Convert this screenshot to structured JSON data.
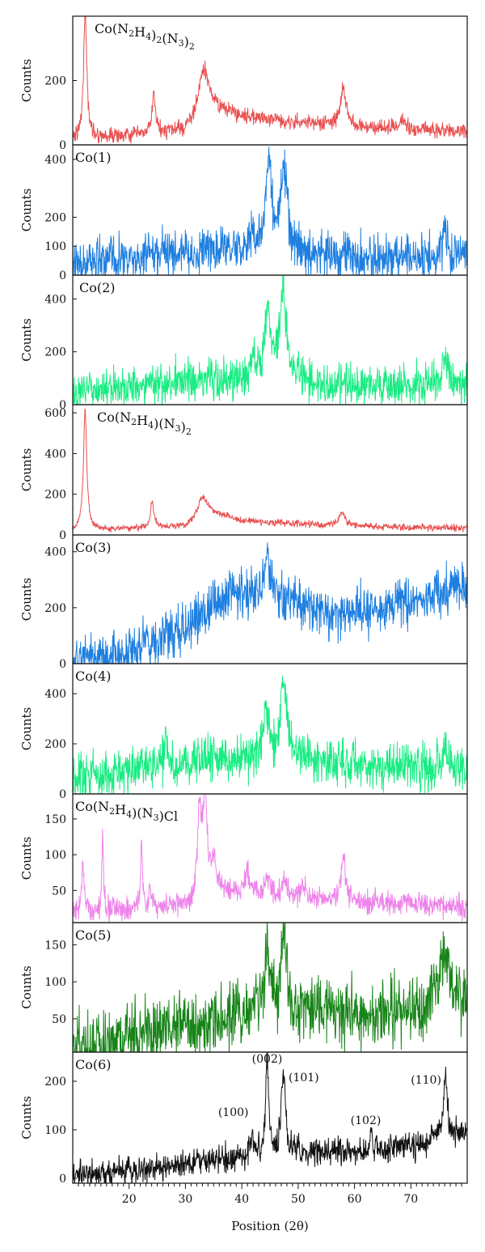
{
  "chart_data": {
    "type": "line",
    "xlabel": "Position (2θ)",
    "xlim": [
      10,
      80
    ],
    "x_ticks": [
      20,
      30,
      40,
      50,
      60,
      70
    ],
    "panels": [
      {
        "label_parts": [
          [
            "Co(N",
            "n"
          ],
          [
            "2",
            "sub"
          ],
          [
            "H",
            "n"
          ],
          [
            "4",
            "sub"
          ],
          [
            ")",
            "n"
          ],
          [
            "2",
            "sub"
          ],
          [
            "(N",
            "n"
          ],
          [
            "3",
            "sub"
          ],
          [
            ")",
            "n"
          ],
          [
            "2",
            "sub"
          ]
        ],
        "ylabel": "Counts",
        "color": "#e8504f",
        "ylim": [
          0,
          400
        ],
        "y_ticks": [
          0,
          200
        ],
        "baseline": [
          [
            10,
            20
          ],
          [
            12,
            22
          ],
          [
            20,
            28
          ],
          [
            30,
            45
          ],
          [
            34,
            120
          ],
          [
            40,
            90
          ],
          [
            50,
            70
          ],
          [
            60,
            55
          ],
          [
            70,
            48
          ],
          [
            80,
            42
          ]
        ],
        "peaks": [
          [
            12.2,
            380,
            0.35
          ],
          [
            24.4,
            120,
            0.35
          ],
          [
            33.2,
            130,
            1.0
          ],
          [
            58.0,
            120,
            0.6
          ],
          [
            68.5,
            20,
            0.8
          ]
        ],
        "noise": 12
      },
      {
        "label_parts": [
          [
            "Co(1)",
            "n"
          ]
        ],
        "ylabel": "Counts",
        "color": "#1e7fe0",
        "ylim": [
          0,
          450
        ],
        "y_ticks": [
          0,
          100,
          200,
          400
        ],
        "baseline": [
          [
            10,
            40
          ],
          [
            20,
            55
          ],
          [
            35,
            85
          ],
          [
            50,
            70
          ],
          [
            60,
            60
          ],
          [
            80,
            60
          ]
        ],
        "peaks": [
          [
            41.8,
            80,
            0.4
          ],
          [
            44.8,
            330,
            0.6
          ],
          [
            47.5,
            290,
            0.7
          ],
          [
            76.0,
            100,
            0.5
          ]
        ],
        "noise": 40
      },
      {
        "label_parts": [
          [
            "Co(2)",
            "n"
          ]
        ],
        "ylabel": "Counts",
        "color": "#19ec82",
        "ylim": [
          0,
          490
        ],
        "y_ticks": [
          0,
          200,
          400
        ],
        "baseline": [
          [
            10,
            45
          ],
          [
            20,
            75
          ],
          [
            35,
            95
          ],
          [
            50,
            85
          ],
          [
            60,
            75
          ],
          [
            80,
            75
          ]
        ],
        "peaks": [
          [
            42.0,
            90,
            0.4
          ],
          [
            44.6,
            280,
            0.6
          ],
          [
            47.3,
            340,
            0.7
          ],
          [
            76.0,
            110,
            0.5
          ]
        ],
        "noise": 38
      },
      {
        "label_parts": [
          [
            "Co(N",
            "n"
          ],
          [
            "2",
            "sub"
          ],
          [
            "H",
            "n"
          ],
          [
            "4",
            "sub"
          ],
          [
            ")(N",
            "n"
          ],
          [
            "3",
            "sub"
          ],
          [
            ")",
            "n"
          ],
          [
            "2",
            "sub"
          ]
        ],
        "ylabel": "Counts",
        "color": "#e8504f",
        "ylim": [
          0,
          640
        ],
        "y_ticks": [
          0,
          200,
          400,
          600
        ],
        "baseline": [
          [
            10,
            20
          ],
          [
            12,
            25
          ],
          [
            20,
            30
          ],
          [
            30,
            45
          ],
          [
            34,
            120
          ],
          [
            40,
            70
          ],
          [
            50,
            55
          ],
          [
            60,
            45
          ],
          [
            70,
            38
          ],
          [
            80,
            35
          ]
        ],
        "peaks": [
          [
            12.2,
            590,
            0.35
          ],
          [
            24.1,
            130,
            0.35
          ],
          [
            33.0,
            90,
            0.8
          ],
          [
            57.8,
            65,
            0.6
          ]
        ],
        "noise": 8
      },
      {
        "label_parts": [
          [
            "Co(3)",
            "n"
          ]
        ],
        "ylabel": "Counts",
        "color": "#1e7fe0",
        "ylim": [
          0,
          460
        ],
        "y_ticks": [
          0,
          200,
          400
        ],
        "baseline": [
          [
            10,
            15
          ],
          [
            20,
            40
          ],
          [
            30,
            130
          ],
          [
            38,
            250
          ],
          [
            45,
            260
          ],
          [
            55,
            170
          ],
          [
            65,
            200
          ],
          [
            80,
            270
          ]
        ],
        "peaks": [
          [
            44.5,
            150,
            0.5
          ]
        ],
        "noise": 45
      },
      {
        "label_parts": [
          [
            "Co(4)",
            "n"
          ]
        ],
        "ylabel": "Counts",
        "color": "#19ec82",
        "ylim": [
          0,
          520
        ],
        "y_ticks": [
          0,
          200,
          400
        ],
        "baseline": [
          [
            10,
            60
          ],
          [
            25,
            110
          ],
          [
            35,
            140
          ],
          [
            50,
            140
          ],
          [
            65,
            100
          ],
          [
            80,
            110
          ]
        ],
        "peaks": [
          [
            26.5,
            150,
            0.25
          ],
          [
            44.3,
            230,
            0.5
          ],
          [
            47.4,
            320,
            0.6
          ],
          [
            76.0,
            90,
            0.5
          ]
        ],
        "noise": 45
      },
      {
        "label_parts": [
          [
            "Co(N",
            "n"
          ],
          [
            "2",
            "sub"
          ],
          [
            "H",
            "n"
          ],
          [
            "4",
            "sub"
          ],
          [
            ")(N",
            "n"
          ],
          [
            "3",
            "sub"
          ],
          [
            ")Cl",
            "n"
          ]
        ],
        "ylabel": "Counts",
        "color": "#ee83ea",
        "ylim": [
          5,
          185
        ],
        "y_ticks": [
          50,
          100,
          150
        ],
        "baseline": [
          [
            10,
            15
          ],
          [
            14,
            20
          ],
          [
            20,
            22
          ],
          [
            31,
            30
          ],
          [
            33,
            60
          ],
          [
            37,
            50
          ],
          [
            45,
            40
          ],
          [
            55,
            35
          ],
          [
            65,
            30
          ],
          [
            80,
            28
          ]
        ],
        "peaks": [
          [
            11.8,
            70,
            0.3
          ],
          [
            15.3,
            100,
            0.2
          ],
          [
            22.2,
            95,
            0.2
          ],
          [
            23.8,
            30,
            0.3
          ],
          [
            32.5,
            110,
            0.4
          ],
          [
            33.5,
            120,
            0.4
          ],
          [
            35.0,
            40,
            0.4
          ],
          [
            41.0,
            30,
            0.6
          ],
          [
            44.5,
            25,
            0.5
          ],
          [
            47.5,
            25,
            0.5
          ],
          [
            51.0,
            20,
            0.6
          ],
          [
            58.0,
            60,
            0.5
          ],
          [
            64.0,
            8,
            0.5
          ],
          [
            69.0,
            8,
            0.6
          ]
        ],
        "noise": 8
      },
      {
        "label_parts": [
          [
            "Co(5)",
            "n"
          ]
        ],
        "ylabel": "Counts",
        "color": "#178418",
        "ylim": [
          5,
          180
        ],
        "y_ticks": [
          50,
          100,
          150
        ],
        "baseline": [
          [
            10,
            10
          ],
          [
            20,
            25
          ],
          [
            30,
            40
          ],
          [
            40,
            55
          ],
          [
            50,
            60
          ],
          [
            60,
            55
          ],
          [
            70,
            60
          ],
          [
            74,
            70
          ],
          [
            80,
            80
          ]
        ],
        "peaks": [
          [
            44.5,
            90,
            0.5
          ],
          [
            47.5,
            105,
            0.6
          ],
          [
            76.0,
            70,
            0.8
          ]
        ],
        "noise": 22
      },
      {
        "label_parts": [
          [
            "Co(6)",
            "n"
          ]
        ],
        "ylabel": "Counts",
        "color": "#111111",
        "ylim": [
          -10,
          260
        ],
        "y_ticks": [
          0,
          100,
          200
        ],
        "baseline": [
          [
            10,
            5
          ],
          [
            20,
            15
          ],
          [
            30,
            30
          ],
          [
            40,
            45
          ],
          [
            50,
            55
          ],
          [
            60,
            55
          ],
          [
            70,
            65
          ],
          [
            80,
            95
          ]
        ],
        "peaks": [
          [
            41.8,
            45,
            0.35
          ],
          [
            44.5,
            205,
            0.3
          ],
          [
            47.4,
            155,
            0.45
          ],
          [
            62.9,
            45,
            0.2
          ],
          [
            76.1,
            130,
            0.45
          ]
        ],
        "noise": 14,
        "annotations": [
          {
            "text": "(002)",
            "x": 44.5,
            "y": 238
          },
          {
            "text": "(101)",
            "x": 51.0,
            "y": 200
          },
          {
            "text": "(100)",
            "x": 38.5,
            "y": 128
          },
          {
            "text": "(102)",
            "x": 62.0,
            "y": 112
          },
          {
            "text": "(110)",
            "x": 72.7,
            "y": 195
          }
        ]
      }
    ]
  }
}
